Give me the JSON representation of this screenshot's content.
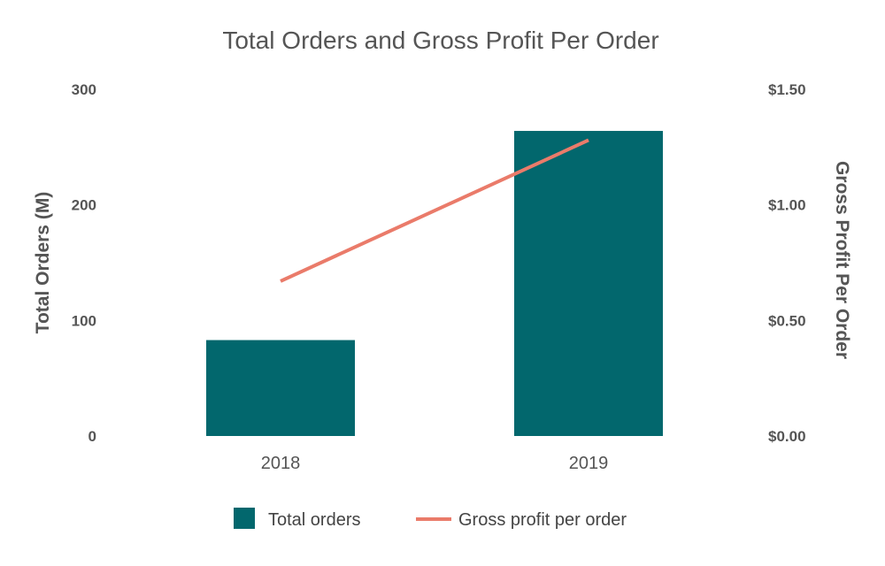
{
  "chart_data": {
    "type": "bar",
    "title": "Total Orders and Gross Profit Per Order",
    "categories": [
      "2018",
      "2019"
    ],
    "series": [
      {
        "name": "Total orders",
        "type": "bar",
        "axis": "left",
        "values": [
          83,
          264
        ]
      },
      {
        "name": "Gross profit per order",
        "type": "line",
        "axis": "right",
        "values": [
          0.67,
          1.28
        ]
      }
    ],
    "y_left": {
      "label": "Total Orders (M)",
      "ylim": [
        0,
        300
      ],
      "ticks": [
        "0",
        "100",
        "200",
        "300"
      ]
    },
    "y_right": {
      "label": "Gross Profit Per Order",
      "ylim": [
        0,
        1.5
      ],
      "ticks": [
        "$0.00",
        "$0.50",
        "$1.00",
        "$1.50"
      ]
    },
    "grid": false,
    "legend": "bottom",
    "colors": {
      "bar": "#02676d",
      "line": "#ea7b6a"
    }
  }
}
